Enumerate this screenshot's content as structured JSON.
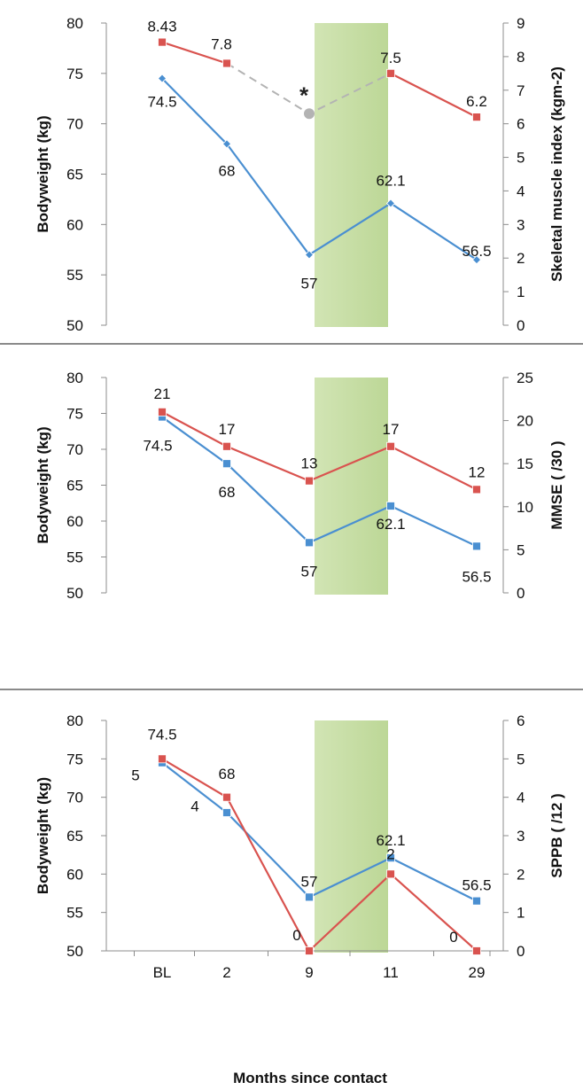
{
  "chart_data": [
    {
      "type": "line",
      "categories": [
        "BL",
        "2",
        "9",
        "11",
        "29"
      ],
      "ylabel": "Bodyweight (kg)",
      "ylim": [
        50,
        80
      ],
      "y_ticks": [
        50,
        55,
        60,
        65,
        70,
        75,
        80
      ],
      "y2label": "Skeletal muscle index (kgm-2)",
      "y2lim": [
        0,
        9
      ],
      "y2_ticks": [
        0,
        1,
        2,
        3,
        4,
        5,
        6,
        7,
        8,
        9
      ],
      "shaded_categories": [
        "9",
        "11"
      ],
      "series": [
        {
          "axis": "left",
          "color": "#4a8fd1",
          "marker": "diamond",
          "values": [
            74.5,
            68,
            57,
            62.1,
            56.5
          ],
          "labels": [
            "74.5",
            "68",
            "57",
            "62.1",
            "56.5"
          ]
        },
        {
          "axis": "right",
          "color": "#d9534f",
          "marker": "square",
          "values": [
            8.43,
            7.8,
            null,
            7.5,
            6.2
          ],
          "labels": [
            "8.43",
            "7.8",
            "",
            "7.5",
            "6.2"
          ]
        }
      ],
      "imputed": {
        "category": "9",
        "value": 6.3,
        "marker_text": "*",
        "color": "#b3b3b3",
        "line_style": "dashed"
      }
    },
    {
      "type": "line",
      "categories": [
        "BL",
        "2",
        "9",
        "11",
        "29"
      ],
      "ylabel": "Bodyweight (kg)",
      "ylim": [
        50,
        80
      ],
      "y_ticks": [
        50,
        55,
        60,
        65,
        70,
        75,
        80
      ],
      "y2label": "MMSE ( /30 )",
      "y2lim": [
        0,
        25
      ],
      "y2_ticks": [
        0,
        5,
        10,
        15,
        20,
        25
      ],
      "shaded_categories": [
        "9",
        "11"
      ],
      "series": [
        {
          "axis": "left",
          "color": "#4a8fd1",
          "marker": "square",
          "values": [
            74.5,
            68,
            57,
            62.1,
            56.5
          ],
          "labels": [
            "74.5",
            "68",
            "57",
            "62.1",
            "56.5"
          ]
        },
        {
          "axis": "right",
          "color": "#d9534f",
          "marker": "square",
          "values": [
            21,
            17,
            13,
            17,
            12
          ],
          "labels": [
            "21",
            "17",
            "13",
            "17",
            "12"
          ]
        }
      ]
    },
    {
      "type": "line",
      "categories": [
        "BL",
        "2",
        "9",
        "11",
        "29"
      ],
      "xlabel": "Months since contact",
      "ylabel": "Bodyweight (kg)",
      "ylim": [
        50,
        80
      ],
      "y_ticks": [
        50,
        55,
        60,
        65,
        70,
        75,
        80
      ],
      "y2label": "SPPB ( /12 )",
      "y2lim": [
        0,
        6
      ],
      "y2_ticks": [
        0,
        1,
        2,
        3,
        4,
        5,
        6
      ],
      "shaded_categories": [
        "9",
        "11"
      ],
      "series": [
        {
          "axis": "left",
          "color": "#4a8fd1",
          "marker": "square",
          "values": [
            74.5,
            68,
            57,
            62.1,
            56.5
          ],
          "labels": [
            "74.5",
            "68",
            "57",
            "62.1",
            "56.5"
          ]
        },
        {
          "axis": "right",
          "color": "#d9534f",
          "marker": "square",
          "values": [
            5,
            4,
            0,
            2,
            0
          ],
          "labels": [
            "5",
            "4",
            "0",
            "2",
            "0"
          ]
        }
      ]
    }
  ]
}
